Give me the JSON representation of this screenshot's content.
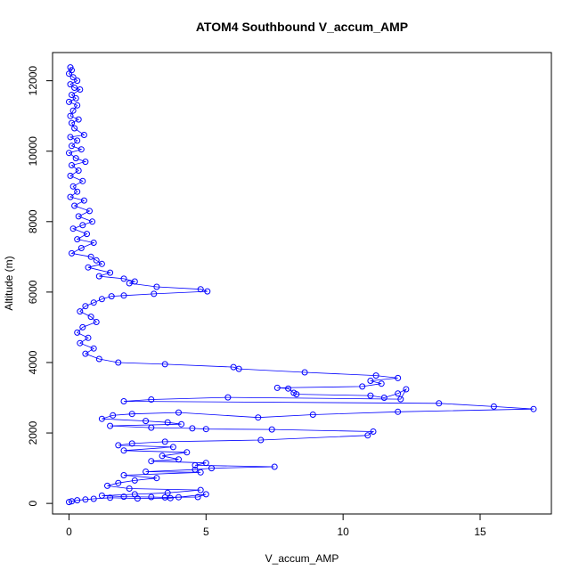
{
  "chart_data": {
    "type": "scatter",
    "title": "ATOM4 Southbound V_accum_AMP",
    "xlabel": "V_accum_AMP",
    "ylabel": "Altitude (m)",
    "xlim": [
      -0.6,
      17.6
    ],
    "ylim": [
      -300,
      12800
    ],
    "xticks": [
      0,
      5,
      10,
      15
    ],
    "yticks": [
      0,
      2000,
      4000,
      6000,
      8000,
      10000,
      12000
    ],
    "grid": false,
    "legend": "none",
    "marker": "open-circle",
    "connected": true,
    "color": "#0000ff",
    "series": [
      {
        "points": [
          [
            0.05,
            12380
          ],
          [
            0.1,
            12300
          ],
          [
            0.0,
            12200
          ],
          [
            0.15,
            12100
          ],
          [
            0.3,
            12000
          ],
          [
            0.05,
            11900
          ],
          [
            0.2,
            11800
          ],
          [
            0.4,
            11750
          ],
          [
            0.1,
            11600
          ],
          [
            0.25,
            11500
          ],
          [
            0.0,
            11400
          ],
          [
            0.3,
            11300
          ],
          [
            0.15,
            11150
          ],
          [
            0.05,
            11000
          ],
          [
            0.35,
            10900
          ],
          [
            0.1,
            10800
          ],
          [
            0.2,
            10650
          ],
          [
            0.55,
            10460
          ],
          [
            0.05,
            10400
          ],
          [
            0.3,
            10300
          ],
          [
            0.1,
            10150
          ],
          [
            0.45,
            10050
          ],
          [
            0.0,
            9950
          ],
          [
            0.25,
            9800
          ],
          [
            0.6,
            9700
          ],
          [
            0.1,
            9600
          ],
          [
            0.35,
            9450
          ],
          [
            0.05,
            9300
          ],
          [
            0.5,
            9150
          ],
          [
            0.15,
            9000
          ],
          [
            0.3,
            8850
          ],
          [
            0.05,
            8700
          ],
          [
            0.55,
            8600
          ],
          [
            0.2,
            8450
          ],
          [
            0.75,
            8300
          ],
          [
            0.35,
            8150
          ],
          [
            0.85,
            8000
          ],
          [
            0.5,
            7900
          ],
          [
            0.15,
            7800
          ],
          [
            0.65,
            7650
          ],
          [
            0.3,
            7500
          ],
          [
            0.9,
            7400
          ],
          [
            0.45,
            7250
          ],
          [
            0.1,
            7100
          ],
          [
            0.8,
            7000
          ],
          [
            1.0,
            6900
          ],
          [
            1.2,
            6800
          ],
          [
            0.7,
            6700
          ],
          [
            1.5,
            6550
          ],
          [
            1.1,
            6450
          ],
          [
            2.0,
            6380
          ],
          [
            2.4,
            6300
          ],
          [
            2.2,
            6250
          ],
          [
            3.2,
            6150
          ],
          [
            4.8,
            6080
          ],
          [
            5.05,
            6020
          ],
          [
            3.1,
            5950
          ],
          [
            2.0,
            5900
          ],
          [
            1.55,
            5880
          ],
          [
            1.2,
            5800
          ],
          [
            0.9,
            5700
          ],
          [
            0.6,
            5600
          ],
          [
            0.4,
            5450
          ],
          [
            0.8,
            5300
          ],
          [
            1.0,
            5150
          ],
          [
            0.5,
            5000
          ],
          [
            0.3,
            4850
          ],
          [
            0.7,
            4700
          ],
          [
            0.4,
            4550
          ],
          [
            0.9,
            4400
          ],
          [
            0.6,
            4250
          ],
          [
            1.1,
            4100
          ],
          [
            1.8,
            4000
          ],
          [
            3.5,
            3950
          ],
          [
            6.0,
            3870
          ],
          [
            6.2,
            3820
          ],
          [
            8.6,
            3720
          ],
          [
            11.2,
            3630
          ],
          [
            12.0,
            3560
          ],
          [
            11.0,
            3480
          ],
          [
            11.4,
            3400
          ],
          [
            10.7,
            3320
          ],
          [
            7.6,
            3280
          ],
          [
            8.0,
            3260
          ],
          [
            8.2,
            3140
          ],
          [
            8.3,
            3100
          ],
          [
            11.0,
            3060
          ],
          [
            11.5,
            3000
          ],
          [
            12.0,
            3120
          ],
          [
            12.3,
            3240
          ],
          [
            12.1,
            2960
          ],
          [
            5.8,
            3010
          ],
          [
            3.0,
            2950
          ],
          [
            2.0,
            2900
          ],
          [
            13.5,
            2840
          ],
          [
            15.5,
            2750
          ],
          [
            16.95,
            2680
          ],
          [
            12.0,
            2600
          ],
          [
            8.9,
            2520
          ],
          [
            6.9,
            2440
          ],
          [
            4.0,
            2580
          ],
          [
            2.3,
            2540
          ],
          [
            1.6,
            2500
          ],
          [
            1.2,
            2400
          ],
          [
            2.8,
            2340
          ],
          [
            3.6,
            2300
          ],
          [
            4.1,
            2250
          ],
          [
            1.5,
            2200
          ],
          [
            3.0,
            2150
          ],
          [
            4.5,
            2130
          ],
          [
            5.0,
            2110
          ],
          [
            7.4,
            2100
          ],
          [
            11.1,
            2040
          ],
          [
            10.9,
            1930
          ],
          [
            7.0,
            1800
          ],
          [
            3.5,
            1750
          ],
          [
            2.3,
            1700
          ],
          [
            1.8,
            1650
          ],
          [
            3.8,
            1600
          ],
          [
            2.0,
            1500
          ],
          [
            4.3,
            1450
          ],
          [
            3.4,
            1350
          ],
          [
            4.0,
            1250
          ],
          [
            3.0,
            1200
          ],
          [
            5.0,
            1150
          ],
          [
            4.6,
            1080
          ],
          [
            7.5,
            1040
          ],
          [
            5.2,
            1000
          ],
          [
            4.6,
            960
          ],
          [
            2.8,
            900
          ],
          [
            4.8,
            880
          ],
          [
            2.0,
            800
          ],
          [
            3.2,
            720
          ],
          [
            2.4,
            650
          ],
          [
            1.8,
            580
          ],
          [
            1.4,
            500
          ],
          [
            2.2,
            420
          ],
          [
            4.8,
            380
          ],
          [
            3.6,
            300
          ],
          [
            2.4,
            260
          ],
          [
            1.2,
            220
          ],
          [
            2.0,
            190
          ],
          [
            3.0,
            180
          ],
          [
            3.5,
            170
          ],
          [
            4.0,
            175
          ],
          [
            4.7,
            180
          ],
          [
            5.0,
            260
          ],
          [
            3.7,
            150
          ],
          [
            2.5,
            140
          ],
          [
            1.5,
            160
          ],
          [
            0.9,
            130
          ],
          [
            0.6,
            110
          ],
          [
            0.3,
            90
          ],
          [
            0.1,
            60
          ],
          [
            0.0,
            40
          ]
        ]
      }
    ]
  }
}
